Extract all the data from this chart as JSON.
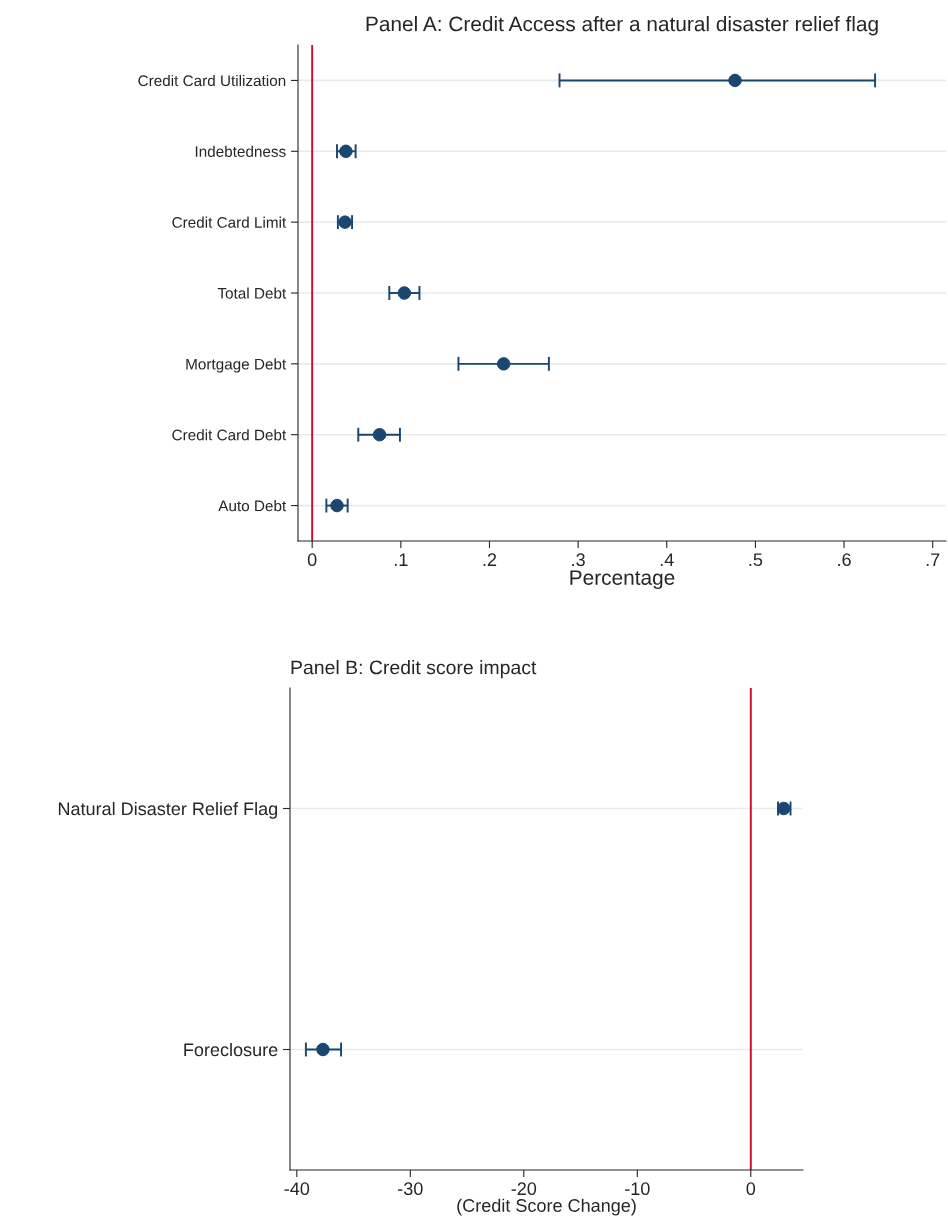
{
  "chart_data": [
    {
      "type": "scatter",
      "orientation": "horizontal",
      "title": "Panel A: Credit Access after a natural disaster relief flag",
      "xlabel": "Percentage",
      "categories": [
        "Credit Card Utilization",
        "Indebtedness",
        "Credit Card Limit",
        "Total Debt",
        "Mortgage Debt",
        "Credit Card Debt",
        "Auto Debt"
      ],
      "series": [
        {
          "color": "#1a476f",
          "values": [
            0.477,
            0.038,
            0.037,
            0.104,
            0.216,
            0.076,
            0.028
          ],
          "errors": [
            [
              0.279,
              0.635
            ],
            [
              0.028,
              0.049
            ],
            [
              0.029,
              0.045
            ],
            [
              0.087,
              0.121
            ],
            [
              0.165,
              0.267
            ],
            [
              0.052,
              0.099
            ],
            [
              0.016,
              0.04
            ]
          ]
        }
      ],
      "xlim": [
        -0.016,
        0.715
      ],
      "xticks": [
        0,
        {
          "value": 0.1,
          "label": ".1"
        },
        {
          "value": 0.2,
          "label": ".2"
        },
        {
          "value": 0.3,
          "label": ".3"
        },
        {
          "value": 0.4,
          "label": ".4"
        },
        {
          "value": 0.5,
          "label": ".5"
        },
        {
          "value": 0.6,
          "label": ".6"
        },
        {
          "value": 0.7,
          "label": ".7"
        }
      ],
      "ref_lines": [
        {
          "axis": "x",
          "value": 0,
          "color": "#c8102e"
        }
      ],
      "grid": "y",
      "marker": "circle"
    },
    {
      "type": "scatter",
      "orientation": "horizontal",
      "title": "Panel B: Credit score impact",
      "xlabel": "(Credit Score Change)",
      "categories": [
        "Natural Disaster Relief Flag",
        "Foreclosure"
      ],
      "series": [
        {
          "color": "#1a476f",
          "values": [
            2.9,
            -37.7
          ],
          "errors": [
            [
              2.4,
              3.5
            ],
            [
              -39.2,
              -36.1
            ]
          ]
        }
      ],
      "xlim": [
        -40.6,
        4.6
      ],
      "xticks": [
        -40,
        -30,
        -20,
        -10,
        0
      ],
      "ref_lines": [
        {
          "axis": "x",
          "value": 0,
          "color": "#c8102e"
        }
      ],
      "grid": "y",
      "marker": "circle"
    }
  ]
}
